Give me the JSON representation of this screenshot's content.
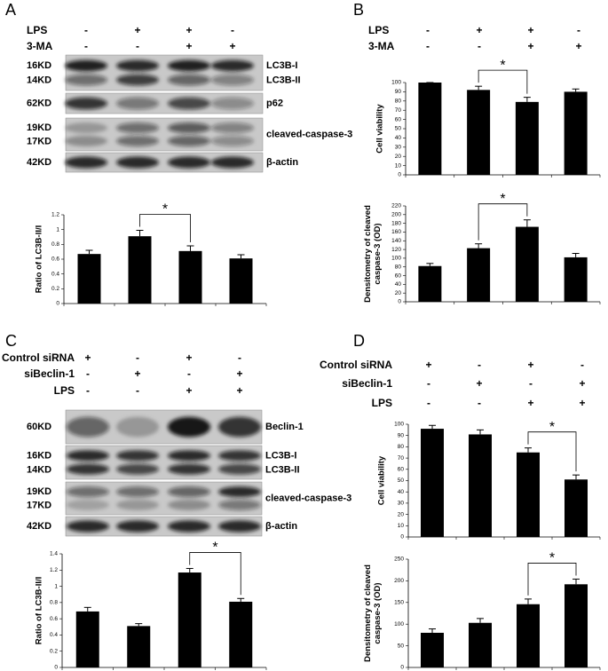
{
  "panels": [
    {
      "letter": "A",
      "conditions": [
        {
          "name": "LPS",
          "signs": [
            "-",
            "+",
            "+",
            "-"
          ]
        },
        {
          "name": "3-MA",
          "signs": [
            "-",
            "-",
            "+",
            "+"
          ]
        }
      ],
      "blots": [
        {
          "left": [
            "16KD",
            "14KD"
          ],
          "right": [
            "LC3B-I",
            "LC3B-II"
          ]
        },
        {
          "left": [
            "62KD"
          ],
          "right": [
            "p62"
          ]
        },
        {
          "left": [
            "19KD",
            "17KD"
          ],
          "right": [
            "cleaved-caspase-3"
          ]
        },
        {
          "left": [
            "42KD"
          ],
          "right": [
            "β-actin"
          ]
        }
      ]
    },
    {
      "letter": "B",
      "conditions": [
        {
          "name": "LPS",
          "signs": [
            "-",
            "+",
            "+",
            "-"
          ]
        },
        {
          "name": "3-MA",
          "signs": [
            "-",
            "-",
            "+",
            "+"
          ]
        }
      ]
    },
    {
      "letter": "C",
      "conditions": [
        {
          "name": "Control siRNA",
          "signs": [
            "+",
            "-",
            "+",
            "-"
          ]
        },
        {
          "name": "siBeclin-1",
          "signs": [
            "-",
            "+",
            "-",
            "+"
          ]
        },
        {
          "name": "LPS",
          "signs": [
            "-",
            "-",
            "+",
            "+"
          ]
        }
      ],
      "blots": [
        {
          "left": [
            "60KD"
          ],
          "right": [
            "Beclin-1"
          ]
        },
        {
          "left": [
            "16KD",
            "14KD"
          ],
          "right": [
            "LC3B-I",
            "LC3B-II"
          ]
        },
        {
          "left": [
            "19KD",
            "17KD"
          ],
          "right": [
            "cleaved-caspase-3"
          ]
        },
        {
          "left": [
            "42KD"
          ],
          "right": [
            "β-actin"
          ]
        }
      ]
    },
    {
      "letter": "D",
      "conditions": [
        {
          "name": "Control siRNA",
          "signs": [
            "+",
            "-",
            "+",
            "-"
          ]
        },
        {
          "name": "siBeclin-1",
          "signs": [
            "-",
            "+",
            "-",
            "+"
          ]
        },
        {
          "name": "LPS",
          "signs": [
            "-",
            "-",
            "+",
            "+"
          ]
        }
      ]
    }
  ],
  "chart_data": [
    {
      "type": "bar",
      "ylabel": [
        "Ratio of LC3B-II/I"
      ],
      "categories": [
        null,
        null,
        null,
        null
      ],
      "values": [
        0.67,
        0.91,
        0.71,
        0.61
      ],
      "errors": [
        0.05,
        0.08,
        0.07,
        0.05
      ],
      "color": "#000000",
      "ylim": [
        0,
        1.2
      ],
      "yticks": [
        0,
        0.2,
        0.4,
        0.6,
        0.8,
        1,
        1.2
      ],
      "annotation": "*",
      "bracket": [
        1,
        2
      ]
    },
    {
      "type": "bar",
      "ylabel": [
        "Cell viability"
      ],
      "categories": [
        null,
        null,
        null,
        null
      ],
      "values": [
        100,
        92,
        79,
        90
      ],
      "errors": [
        0,
        4,
        5,
        3
      ],
      "color": "#000000",
      "ylim": [
        0,
        100
      ],
      "yticks": [
        0,
        10,
        20,
        30,
        40,
        50,
        60,
        70,
        80,
        90,
        100
      ],
      "annotation": "*",
      "bracket": [
        1,
        2
      ]
    },
    {
      "type": "bar",
      "ylabel": [
        "Densitometry of cleaved",
        "caspase-3 (OD)"
      ],
      "categories": [
        null,
        null,
        null,
        null
      ],
      "values": [
        82,
        123,
        172,
        102
      ],
      "errors": [
        6,
        10,
        16,
        9
      ],
      "color": "#000000",
      "ylim": [
        0,
        220
      ],
      "yticks": [
        0,
        20,
        40,
        60,
        80,
        100,
        120,
        140,
        160,
        180,
        200,
        220
      ],
      "annotation": "*",
      "bracket": [
        1,
        2
      ]
    },
    {
      "type": "bar",
      "ylabel": [
        "Ratio of LC3B-II/I"
      ],
      "categories": [
        null,
        null,
        null,
        null
      ],
      "values": [
        0.69,
        0.51,
        1.17,
        0.81
      ],
      "errors": [
        0.05,
        0.03,
        0.05,
        0.04
      ],
      "color": "#000000",
      "ylim": [
        0,
        1.4
      ],
      "yticks": [
        0,
        0.2,
        0.4,
        0.6,
        0.8,
        1,
        1.2,
        1.4
      ],
      "annotation": "*",
      "bracket": [
        2,
        3
      ]
    },
    {
      "type": "bar",
      "ylabel": [
        "Cell viability"
      ],
      "categories": [
        null,
        null,
        null,
        null
      ],
      "values": [
        96,
        91,
        75,
        51
      ],
      "errors": [
        3,
        4,
        4,
        4
      ],
      "color": "#000000",
      "ylim": [
        0,
        100
      ],
      "yticks": [
        0,
        10,
        20,
        30,
        40,
        50,
        60,
        70,
        80,
        90,
        100
      ],
      "annotation": "*",
      "bracket": [
        2,
        3
      ]
    },
    {
      "type": "bar",
      "ylabel": [
        "Densitometry of cleaved",
        "caspase-3 (OD)"
      ],
      "categories": [
        null,
        null,
        null,
        null
      ],
      "values": [
        80,
        103,
        146,
        192
      ],
      "errors": [
        9,
        10,
        12,
        12
      ],
      "color": "#000000",
      "ylim": [
        0,
        250
      ],
      "yticks": [
        0,
        50,
        100,
        150,
        200,
        250
      ],
      "annotation": "*",
      "bracket": [
        2,
        3
      ]
    }
  ]
}
